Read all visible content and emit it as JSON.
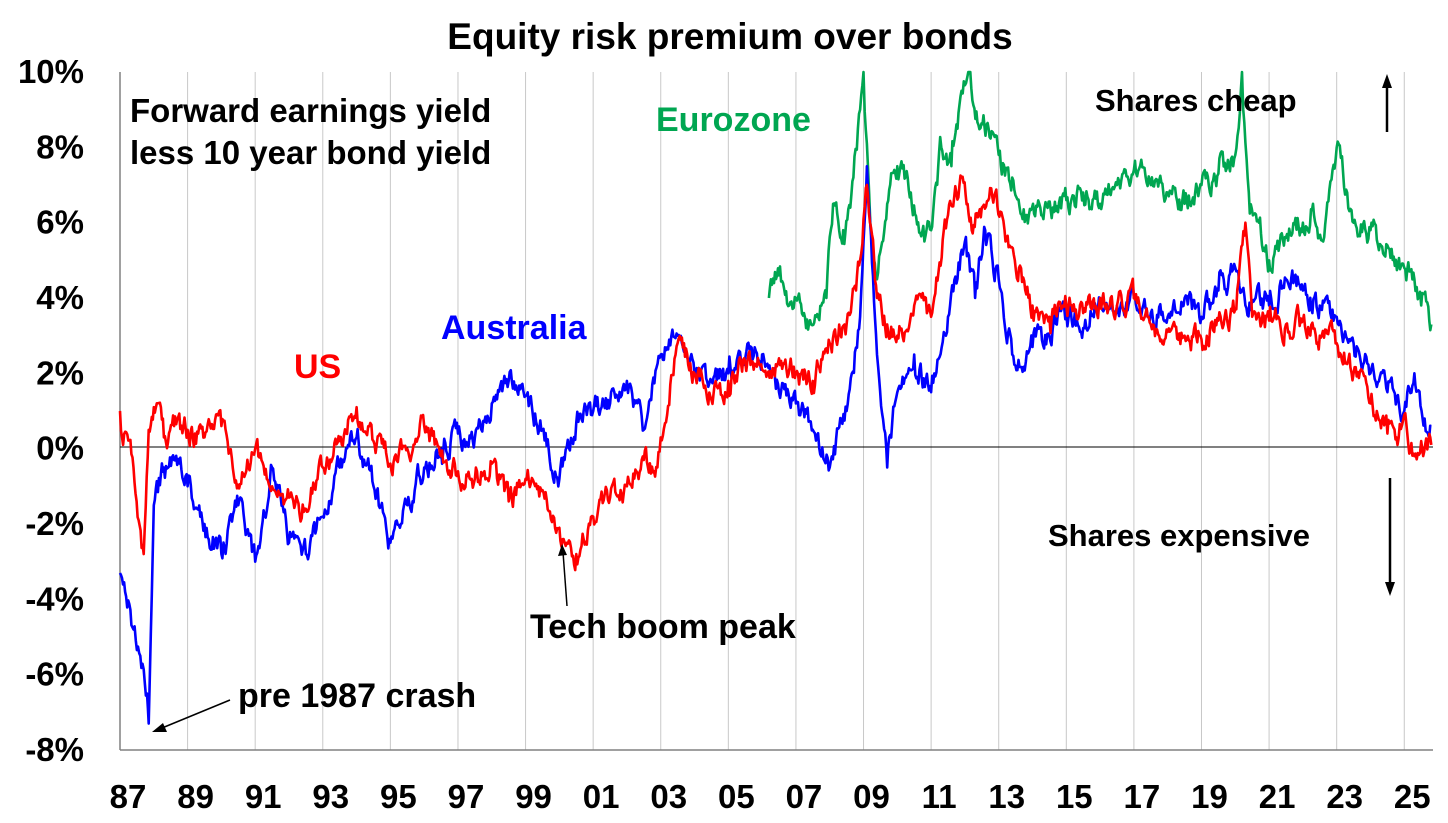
{
  "chart_data": {
    "type": "line",
    "title": "Equity risk premium over bonds",
    "subtitle_lines": [
      "Forward earnings yield",
      "less 10 year bond yield"
    ],
    "xlabel": "",
    "ylabel": "",
    "ylim": [
      -8,
      10
    ],
    "xlim": [
      1987.0,
      2025.85
    ],
    "y_ticks": [
      -8,
      -6,
      -4,
      -2,
      0,
      2,
      4,
      6,
      8,
      10
    ],
    "y_tick_labels": [
      "-8%",
      "-6%",
      "-4%",
      "-2%",
      "0%",
      "2%",
      "4%",
      "6%",
      "8%",
      "10%"
    ],
    "x_ticks": [
      1987,
      1989,
      1991,
      1993,
      1995,
      1997,
      1999,
      2001,
      2003,
      2005,
      2007,
      2009,
      2011,
      2013,
      2015,
      2017,
      2019,
      2021,
      2023,
      2025
    ],
    "x_tick_labels": [
      "87",
      "89",
      "91",
      "93",
      "95",
      "97",
      "99",
      "01",
      "03",
      "05",
      "07",
      "09",
      "11",
      "13",
      "15",
      "17",
      "19",
      "21",
      "23",
      "25"
    ],
    "grid": {
      "vertical": true,
      "horizontal": false
    },
    "series": [
      {
        "name": "US",
        "color": "#ff0000",
        "x": [
          1987.0,
          1987.4,
          1987.7,
          1987.85,
          1988.0,
          1988.3,
          1988.6,
          1989.0,
          1989.5,
          1990.0,
          1990.4,
          1990.8,
          1991.0,
          1991.5,
          1992.0,
          1992.5,
          1993.0,
          1993.5,
          1994.0,
          1994.5,
          1995.0,
          1995.5,
          1996.0,
          1996.5,
          1997.0,
          1997.5,
          1998.0,
          1998.5,
          1999.0,
          1999.5,
          2000.0,
          2000.5,
          2001.0,
          2001.5,
          2002.0,
          2002.5,
          2002.8,
          2003.0,
          2003.5,
          2004.0,
          2004.5,
          2005.0,
          2005.5,
          2006.0,
          2006.5,
          2007.0,
          2007.5,
          2008.0,
          2008.5,
          2008.9,
          2009.1,
          2009.4,
          2009.7,
          2010.0,
          2010.5,
          2011.0,
          2011.5,
          2011.9,
          2012.2,
          2012.5,
          2012.9,
          2013.2,
          2013.6,
          2014.0,
          2014.5,
          2015.0,
          2015.5,
          2016.0,
          2016.5,
          2017.0,
          2017.5,
          2018.0,
          2018.5,
          2019.0,
          2019.5,
          2020.0,
          2020.3,
          2020.5,
          2021.0,
          2021.5,
          2022.0,
          2022.5,
          2023.0,
          2023.5,
          2024.0,
          2024.5,
          2024.8,
          2025.0,
          2025.3,
          2025.5,
          2025.8
        ],
        "values": [
          1.0,
          -0.5,
          -2.8,
          0.5,
          1.1,
          0.3,
          0.6,
          0.5,
          0.3,
          0.6,
          -0.9,
          -0.5,
          0.0,
          -1.0,
          -1.3,
          -1.6,
          -0.5,
          0.2,
          1.1,
          0.2,
          -0.4,
          0.0,
          0.6,
          -0.2,
          -0.6,
          -0.8,
          -0.4,
          -1.4,
          -0.8,
          -1.1,
          -2.1,
          -2.8,
          -1.8,
          -1.3,
          -1.0,
          -0.3,
          -0.6,
          0.3,
          2.8,
          2.0,
          1.3,
          1.8,
          2.3,
          2.1,
          2.4,
          2.0,
          1.8,
          2.8,
          3.3,
          5.0,
          7.0,
          4.0,
          3.3,
          3.0,
          3.8,
          3.5,
          6.2,
          7.2,
          5.8,
          6.4,
          6.8,
          5.5,
          4.8,
          3.8,
          3.5,
          3.8,
          3.6,
          4.0,
          3.8,
          4.0,
          3.3,
          3.1,
          3.0,
          2.9,
          3.4,
          3.7,
          6.0,
          3.5,
          3.4,
          3.3,
          3.4,
          3.0,
          2.8,
          2.0,
          1.2,
          0.4,
          0.1,
          0.9,
          -0.2,
          0.2,
          0.1
        ]
      },
      {
        "name": "Australia",
        "color": "#0000ff",
        "x": [
          1987.0,
          1987.15,
          1987.4,
          1987.6,
          1987.8,
          1987.85,
          1988.0,
          1988.3,
          1988.6,
          1989.0,
          1989.5,
          1990.0,
          1990.5,
          1991.0,
          1991.5,
          1992.0,
          1992.5,
          1993.0,
          1993.5,
          1994.0,
          1994.5,
          1995.0,
          1995.5,
          1996.0,
          1996.5,
          1997.0,
          1997.5,
          1998.0,
          1998.5,
          1999.0,
          1999.5,
          2000.0,
          2000.5,
          2001.0,
          2001.5,
          2002.0,
          2002.5,
          2003.0,
          2003.5,
          2004.0,
          2004.5,
          2005.0,
          2005.5,
          2006.0,
          2006.5,
          2007.0,
          2007.5,
          2008.0,
          2008.5,
          2008.9,
          2009.1,
          2009.4,
          2009.7,
          2010.0,
          2010.5,
          2011.0,
          2011.5,
          2012.0,
          2012.3,
          2012.6,
          2013.0,
          2013.4,
          2013.8,
          2014.0,
          2014.5,
          2015.0,
          2015.5,
          2016.0,
          2016.5,
          2017.0,
          2017.5,
          2018.0,
          2018.5,
          2019.0,
          2019.5,
          2020.0,
          2020.3,
          2020.6,
          2021.0,
          2021.5,
          2022.0,
          2022.5,
          2023.0,
          2023.5,
          2024.0,
          2024.5,
          2025.0,
          2025.3,
          2025.6,
          2025.8
        ],
        "values": [
          -3.3,
          -3.8,
          -4.8,
          -5.5,
          -6.5,
          -7.3,
          -1.5,
          -0.5,
          -0.3,
          -1.0,
          -2.0,
          -2.8,
          -1.5,
          -3.0,
          -0.5,
          -2.5,
          -2.8,
          -1.8,
          -0.5,
          0.3,
          -1.0,
          -2.5,
          -1.5,
          -0.5,
          0.0,
          0.4,
          0.3,
          1.2,
          1.8,
          1.4,
          0.5,
          -0.8,
          0.7,
          1.0,
          1.2,
          1.8,
          0.5,
          2.5,
          3.0,
          2.0,
          1.8,
          2.0,
          2.4,
          2.5,
          1.5,
          1.2,
          0.5,
          -0.5,
          1.0,
          3.5,
          7.5,
          2.5,
          -0.5,
          1.5,
          2.5,
          1.5,
          3.5,
          5.5,
          4.0,
          5.8,
          4.5,
          2.5,
          2.3,
          2.7,
          3.0,
          3.6,
          3.2,
          4.0,
          3.8,
          4.0,
          3.6,
          3.5,
          4.0,
          3.5,
          4.2,
          4.8,
          3.8,
          4.0,
          3.8,
          4.5,
          4.2,
          3.8,
          3.5,
          2.8,
          2.0,
          1.5,
          1.0,
          2.0,
          0.8,
          0.6
        ]
      },
      {
        "name": "Eurozone",
        "color": "#00a651",
        "x": [
          2006.2,
          2006.5,
          2006.8,
          2007.0,
          2007.3,
          2007.6,
          2007.9,
          2008.1,
          2008.4,
          2008.7,
          2008.9,
          2009.0,
          2009.2,
          2009.4,
          2009.7,
          2010.0,
          2010.4,
          2010.8,
          2011.0,
          2011.3,
          2011.6,
          2011.9,
          2012.1,
          2012.4,
          2012.7,
          2013.0,
          2013.4,
          2013.8,
          2014.2,
          2014.6,
          2015.0,
          2015.5,
          2016.0,
          2016.5,
          2017.0,
          2017.5,
          2018.0,
          2018.5,
          2019.0,
          2019.5,
          2020.0,
          2020.2,
          2020.4,
          2020.7,
          2021.0,
          2021.5,
          2022.0,
          2022.3,
          2022.6,
          2023.0,
          2023.5,
          2024.0,
          2024.5,
          2025.0,
          2025.3,
          2025.5,
          2025.8
        ],
        "values": [
          4.0,
          4.6,
          3.8,
          4.0,
          3.2,
          3.5,
          4.0,
          6.5,
          5.8,
          7.2,
          9.0,
          10.0,
          6.0,
          4.5,
          6.5,
          7.5,
          6.8,
          5.5,
          5.8,
          8.0,
          7.5,
          9.5,
          10.0,
          8.6,
          8.5,
          7.8,
          7.2,
          6.2,
          6.5,
          6.4,
          6.6,
          6.8,
          6.5,
          7.0,
          7.4,
          7.0,
          6.8,
          6.5,
          7.0,
          7.3,
          7.8,
          10.0,
          6.8,
          6.0,
          5.0,
          5.6,
          6.0,
          6.5,
          5.5,
          8.0,
          6.0,
          5.8,
          5.4,
          4.8,
          4.5,
          3.8,
          3.3
        ]
      }
    ],
    "annotations": [
      {
        "id": "eurozone-label",
        "text": "Eurozone",
        "color": "#00a651"
      },
      {
        "id": "australia-label",
        "text": "Australia",
        "color": "#0000ff"
      },
      {
        "id": "us-label",
        "text": "US",
        "color": "#ff0000"
      },
      {
        "id": "shares-cheap",
        "text": "Shares cheap",
        "color": "#000000"
      },
      {
        "id": "shares-expensive",
        "text": "Shares expensive",
        "color": "#000000"
      },
      {
        "id": "tech-boom",
        "text": "Tech boom peak",
        "color": "#000000",
        "points_to": [
          2000.0,
          -2.8
        ]
      },
      {
        "id": "pre-crash",
        "text": "pre 1987 crash",
        "color": "#000000",
        "points_to": [
          1987.5,
          -7.4
        ]
      }
    ]
  }
}
